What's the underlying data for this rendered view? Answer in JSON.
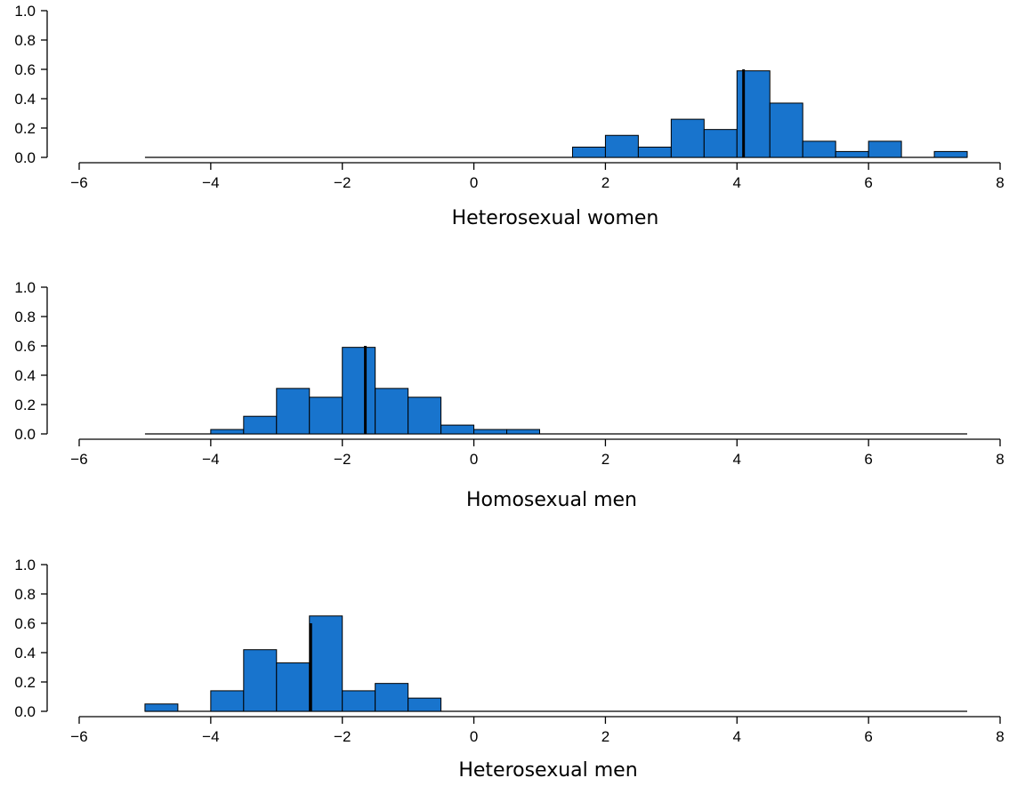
{
  "chart_data": [
    {
      "type": "bar",
      "xlabel": "Heterosexual women",
      "xlim": [
        -6,
        8
      ],
      "ylim": [
        0,
        1.0
      ],
      "xticks": [
        "-6",
        "-4",
        "-2",
        "0",
        "2",
        "4",
        "6",
        "8"
      ],
      "yticks": [
        "0.0",
        "0.2",
        "0.4",
        "0.6",
        "0.8",
        "1.0"
      ],
      "density_range": [
        -5,
        7.5
      ],
      "bin_width": 0.5,
      "bins": [
        {
          "x0": 1.5,
          "x1": 2.0,
          "density": 0.07
        },
        {
          "x0": 2.0,
          "x1": 2.5,
          "density": 0.15
        },
        {
          "x0": 2.5,
          "x1": 3.0,
          "density": 0.07
        },
        {
          "x0": 3.0,
          "x1": 3.5,
          "density": 0.26
        },
        {
          "x0": 3.5,
          "x1": 4.0,
          "density": 0.19
        },
        {
          "x0": 4.0,
          "x1": 4.5,
          "density": 0.59
        },
        {
          "x0": 4.5,
          "x1": 5.0,
          "density": 0.37
        },
        {
          "x0": 5.0,
          "x1": 5.5,
          "density": 0.11
        },
        {
          "x0": 5.5,
          "x1": 6.0,
          "density": 0.04
        },
        {
          "x0": 6.0,
          "x1": 6.5,
          "density": 0.11
        },
        {
          "x0": 6.5,
          "x1": 7.0,
          "density": 0.0
        },
        {
          "x0": 7.0,
          "x1": 7.5,
          "density": 0.04
        }
      ],
      "median": 4.1
    },
    {
      "type": "bar",
      "xlabel": "Homosexual men",
      "xlim": [
        -6,
        8
      ],
      "ylim": [
        0,
        1.0
      ],
      "xticks": [
        "-6",
        "-4",
        "-2",
        "0",
        "2",
        "4",
        "6",
        "8"
      ],
      "yticks": [
        "0.0",
        "0.2",
        "0.4",
        "0.6",
        "0.8",
        "1.0"
      ],
      "density_range": [
        -5,
        7.5
      ],
      "bin_width": 0.5,
      "bins": [
        {
          "x0": -4.0,
          "x1": -3.5,
          "density": 0.03
        },
        {
          "x0": -3.5,
          "x1": -3.0,
          "density": 0.12
        },
        {
          "x0": -3.0,
          "x1": -2.5,
          "density": 0.31
        },
        {
          "x0": -2.5,
          "x1": -2.0,
          "density": 0.25
        },
        {
          "x0": -2.0,
          "x1": -1.5,
          "density": 0.59
        },
        {
          "x0": -1.5,
          "x1": -1.0,
          "density": 0.31
        },
        {
          "x0": -1.0,
          "x1": -0.5,
          "density": 0.25
        },
        {
          "x0": -0.5,
          "x1": 0.0,
          "density": 0.06
        },
        {
          "x0": 0.0,
          "x1": 0.5,
          "density": 0.03
        },
        {
          "x0": 0.5,
          "x1": 1.0,
          "density": 0.03
        }
      ],
      "median": -1.65
    },
    {
      "type": "bar",
      "xlabel": "Heterosexual men",
      "xlim": [
        -6,
        8
      ],
      "ylim": [
        0,
        1.0
      ],
      "xticks": [
        "-6",
        "-4",
        "-2",
        "0",
        "2",
        "4",
        "6",
        "8"
      ],
      "yticks": [
        "0.0",
        "0.2",
        "0.4",
        "0.6",
        "0.8",
        "1.0"
      ],
      "density_range": [
        -5,
        7.5
      ],
      "bin_width": 0.5,
      "bins": [
        {
          "x0": -5.0,
          "x1": -4.5,
          "density": 0.05
        },
        {
          "x0": -4.5,
          "x1": -4.0,
          "density": 0.0
        },
        {
          "x0": -4.0,
          "x1": -3.5,
          "density": 0.14
        },
        {
          "x0": -3.5,
          "x1": -3.0,
          "density": 0.42
        },
        {
          "x0": -3.0,
          "x1": -2.5,
          "density": 0.33
        },
        {
          "x0": -2.5,
          "x1": -2.0,
          "density": 0.65
        },
        {
          "x0": -2.0,
          "x1": -1.5,
          "density": 0.14
        },
        {
          "x0": -1.5,
          "x1": -1.0,
          "density": 0.19
        },
        {
          "x0": -1.0,
          "x1": -0.5,
          "density": 0.09
        }
      ],
      "median": -2.48
    }
  ],
  "colors": {
    "bar_fill": "#1874cd",
    "bar_stroke": "#000000",
    "axis": "#000000",
    "background": "#ffffff"
  }
}
